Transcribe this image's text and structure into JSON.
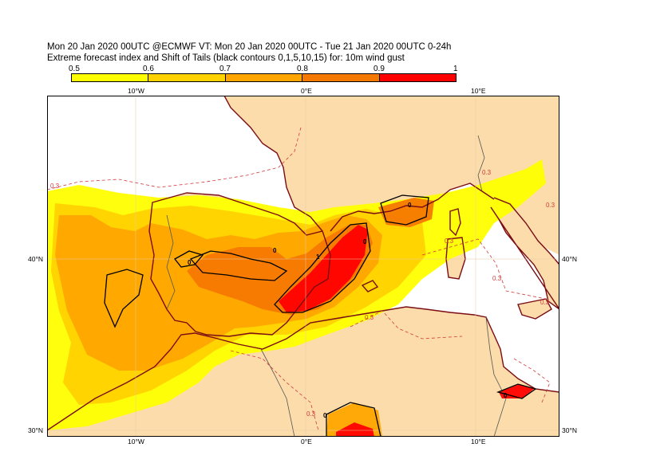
{
  "title": {
    "line1": "Mon 20 Jan 2020 00UTC @ECMWF VT: Mon 20 Jan 2020 00UTC - Tue 21 Jan 2020 00UTC  0-24h",
    "line2": "Extreme forecast index and Shift of Tails (black contours 0,1,5,10,15) for: 10m wind gust"
  },
  "colorbar": {
    "labels": [
      "0.5",
      "0.6",
      "0.7",
      "0.8",
      "0.9",
      "1"
    ],
    "colors": [
      "#ffff00",
      "#ffd200",
      "#ffa500",
      "#f57800",
      "#ff0000"
    ]
  },
  "axes": {
    "top_ticks": [
      "10°W",
      "0°E",
      "10°E"
    ],
    "bottom_ticks": [
      "10°W",
      "0°E",
      "10°E"
    ],
    "left_ticks": [
      "40°N",
      "30°N"
    ],
    "right_ticks": [
      "40°N",
      "30°N"
    ]
  },
  "map_colors": {
    "sea": "#ffffff",
    "land": "#fbdcaa",
    "coast": "#7a0d14",
    "border": "#555555",
    "grid": "#e6c9a6",
    "efi_contour": "#d23c3c",
    "sot_contour": "#000000"
  },
  "contour_labels": {
    "efi": [
      "0.3",
      "0.3",
      "0.3",
      "0.3",
      "0.3",
      "0.3",
      "0.3",
      "0.3"
    ],
    "sot": [
      "0",
      "0",
      "0",
      "1",
      "0",
      "0",
      "0"
    ]
  }
}
